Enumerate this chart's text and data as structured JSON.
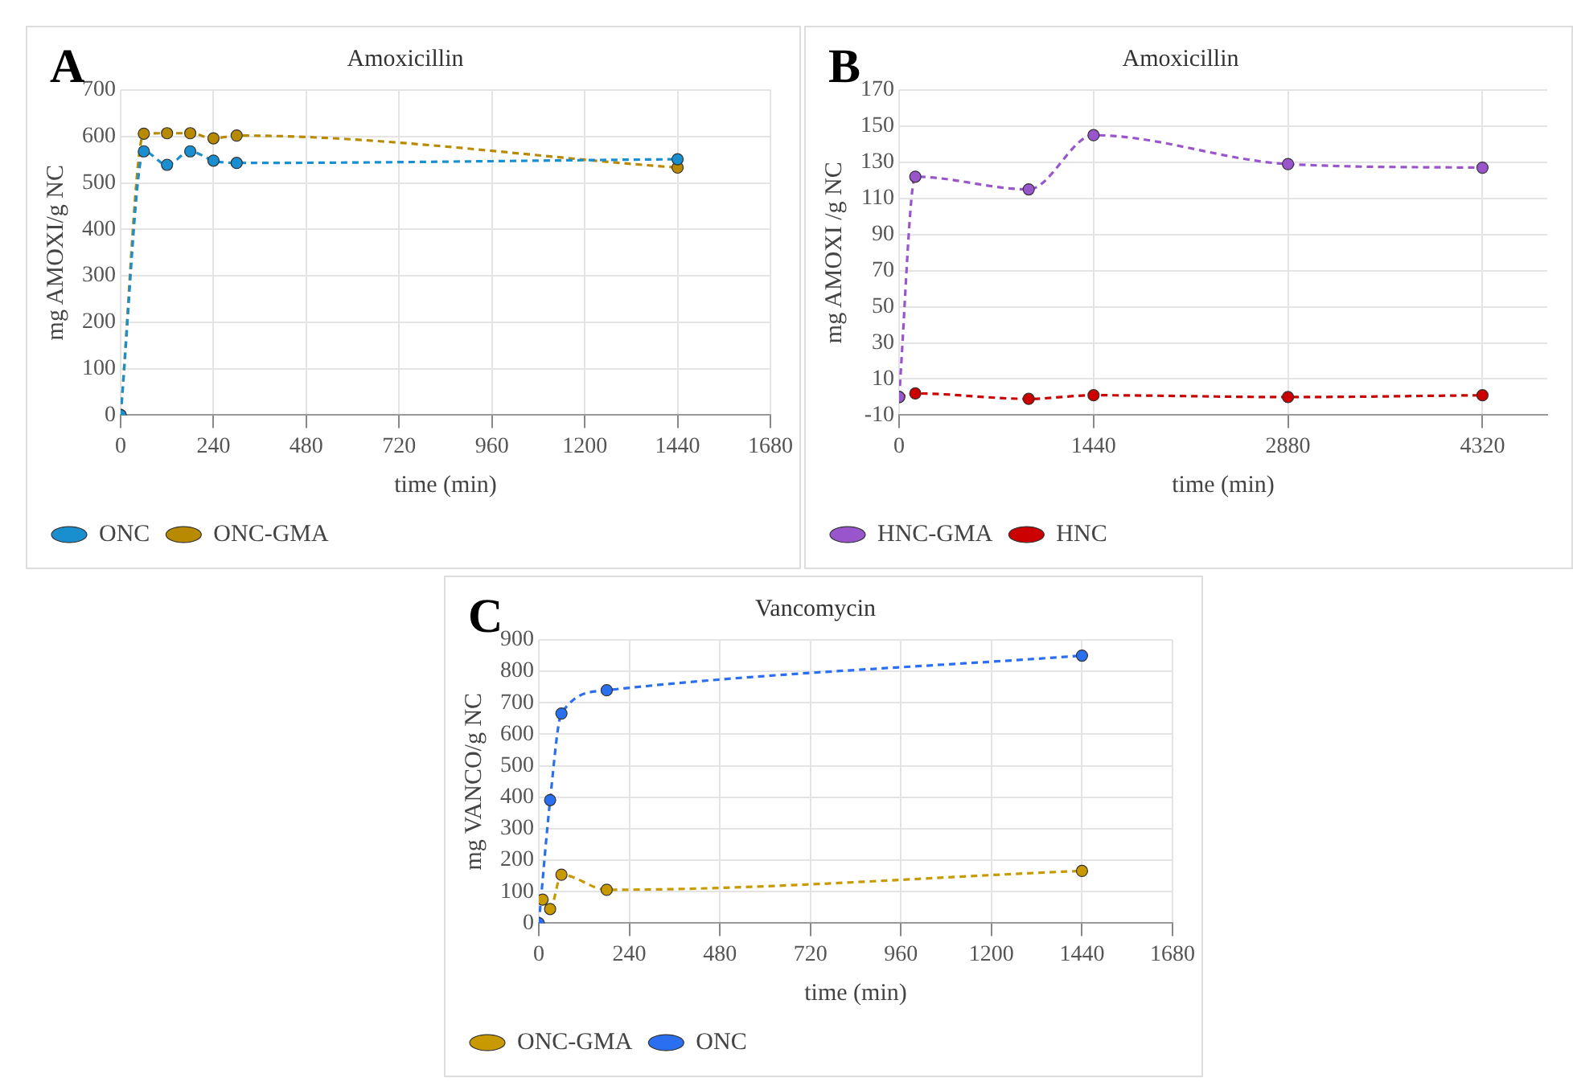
{
  "chart_data": [
    {
      "type": "line",
      "title": "Amoxicillin",
      "annotations": [
        "A"
      ],
      "xlabel": "time (min)",
      "ylabel": "mg AMOXI/g NC",
      "xlim": [
        0,
        1680
      ],
      "xticks": [
        0,
        240,
        480,
        720,
        960,
        1200,
        1440,
        1680
      ],
      "ylim": [
        0,
        700
      ],
      "yticks": [
        0,
        100,
        200,
        300,
        400,
        500,
        600,
        700
      ],
      "grid": true,
      "legend": "bottom left",
      "marker": "circle",
      "line_style": "dashed",
      "series": [
        {
          "name": "ONC",
          "color": "#1a8fd0",
          "x": [
            0,
            60,
            120,
            180,
            240,
            300,
            1440
          ],
          "values": [
            0,
            568,
            539,
            568,
            548,
            543,
            551
          ]
        },
        {
          "name": "ONC-GMA",
          "color": "#b88a00",
          "x": [
            0,
            60,
            120,
            180,
            240,
            300,
            1440
          ],
          "values": [
            0,
            606,
            607,
            607,
            596,
            602,
            533
          ]
        }
      ]
    },
    {
      "type": "line",
      "title": "Amoxicillin",
      "annotations": [
        "B"
      ],
      "xlabel": "time (min)",
      "ylabel": "mg AMOXI /g NC",
      "xlim": [
        0,
        4800
      ],
      "xticks": [
        0,
        1440,
        2880,
        4320
      ],
      "ylim": [
        -10,
        170
      ],
      "yticks": [
        -10,
        10,
        30,
        50,
        70,
        90,
        110,
        130,
        150,
        170
      ],
      "grid": true,
      "legend": "bottom left",
      "marker": "circle",
      "line_style": "dashed",
      "series": [
        {
          "name": "HNC-GMA",
          "color": "#9955cc",
          "x": [
            0,
            120,
            960,
            1440,
            2880,
            4320
          ],
          "values": [
            0,
            122,
            115,
            145,
            129,
            127
          ]
        },
        {
          "name": "HNC",
          "color": "#cc0000",
          "x": [
            0,
            120,
            960,
            1440,
            2880,
            4320
          ],
          "values": [
            0,
            2,
            -1,
            1,
            0,
            1
          ]
        }
      ]
    },
    {
      "type": "line",
      "title": "Vancomycin",
      "annotations": [
        "C"
      ],
      "xlabel": "time (min)",
      "ylabel": "mg VANCO/g NC",
      "xlim": [
        0,
        1680
      ],
      "xticks": [
        0,
        240,
        480,
        720,
        960,
        1200,
        1440,
        1680
      ],
      "ylim": [
        0,
        900
      ],
      "yticks": [
        0,
        100,
        200,
        300,
        400,
        500,
        600,
        700,
        800,
        900
      ],
      "grid": true,
      "legend": "bottom left",
      "marker": "circle",
      "line_style": "dashed",
      "series": [
        {
          "name": "ONC-GMA",
          "color": "#c89a00",
          "x": [
            10,
            30,
            60,
            180,
            1440
          ],
          "values": [
            75,
            45,
            154,
            106,
            166
          ]
        },
        {
          "name": "ONC",
          "color": "#2a6ff0",
          "x": [
            0,
            30,
            60,
            180,
            1440
          ],
          "values": [
            0,
            391,
            666,
            740,
            850
          ]
        }
      ]
    }
  ]
}
